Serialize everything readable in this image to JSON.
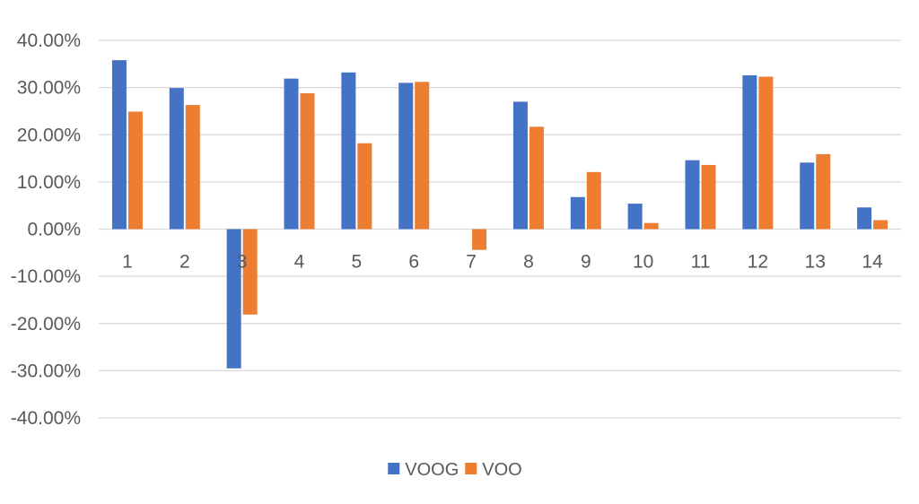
{
  "chart_data": {
    "type": "bar",
    "title": "",
    "xlabel": "",
    "ylabel": "",
    "categories": [
      "1",
      "2",
      "3",
      "4",
      "5",
      "6",
      "7",
      "8",
      "9",
      "10",
      "11",
      "12",
      "13",
      "14"
    ],
    "series": [
      {
        "name": "VOOG",
        "color": "#4472c4",
        "values": [
          0.358,
          0.299,
          -0.295,
          0.319,
          0.332,
          0.31,
          0.0,
          0.27,
          0.068,
          0.054,
          0.146,
          0.326,
          0.141,
          0.046
        ]
      },
      {
        "name": "VOO",
        "color": "#ed7d31",
        "values": [
          0.249,
          0.263,
          -0.181,
          0.288,
          0.182,
          0.312,
          -0.044,
          0.217,
          0.121,
          0.013,
          0.136,
          0.323,
          0.159,
          0.019
        ]
      }
    ],
    "ylim": [
      -0.4,
      0.4
    ],
    "yticks": [
      0.4,
      0.3,
      0.2,
      0.1,
      0.0,
      -0.1,
      -0.2,
      -0.3,
      -0.4
    ],
    "ytick_labels": [
      "40.00%",
      "30.00%",
      "20.00%",
      "10.00%",
      "0.00%",
      "-10.00%",
      "-20.00%",
      "-30.00%",
      "-40.00%"
    ],
    "grid": true,
    "legend_position": "bottom"
  }
}
